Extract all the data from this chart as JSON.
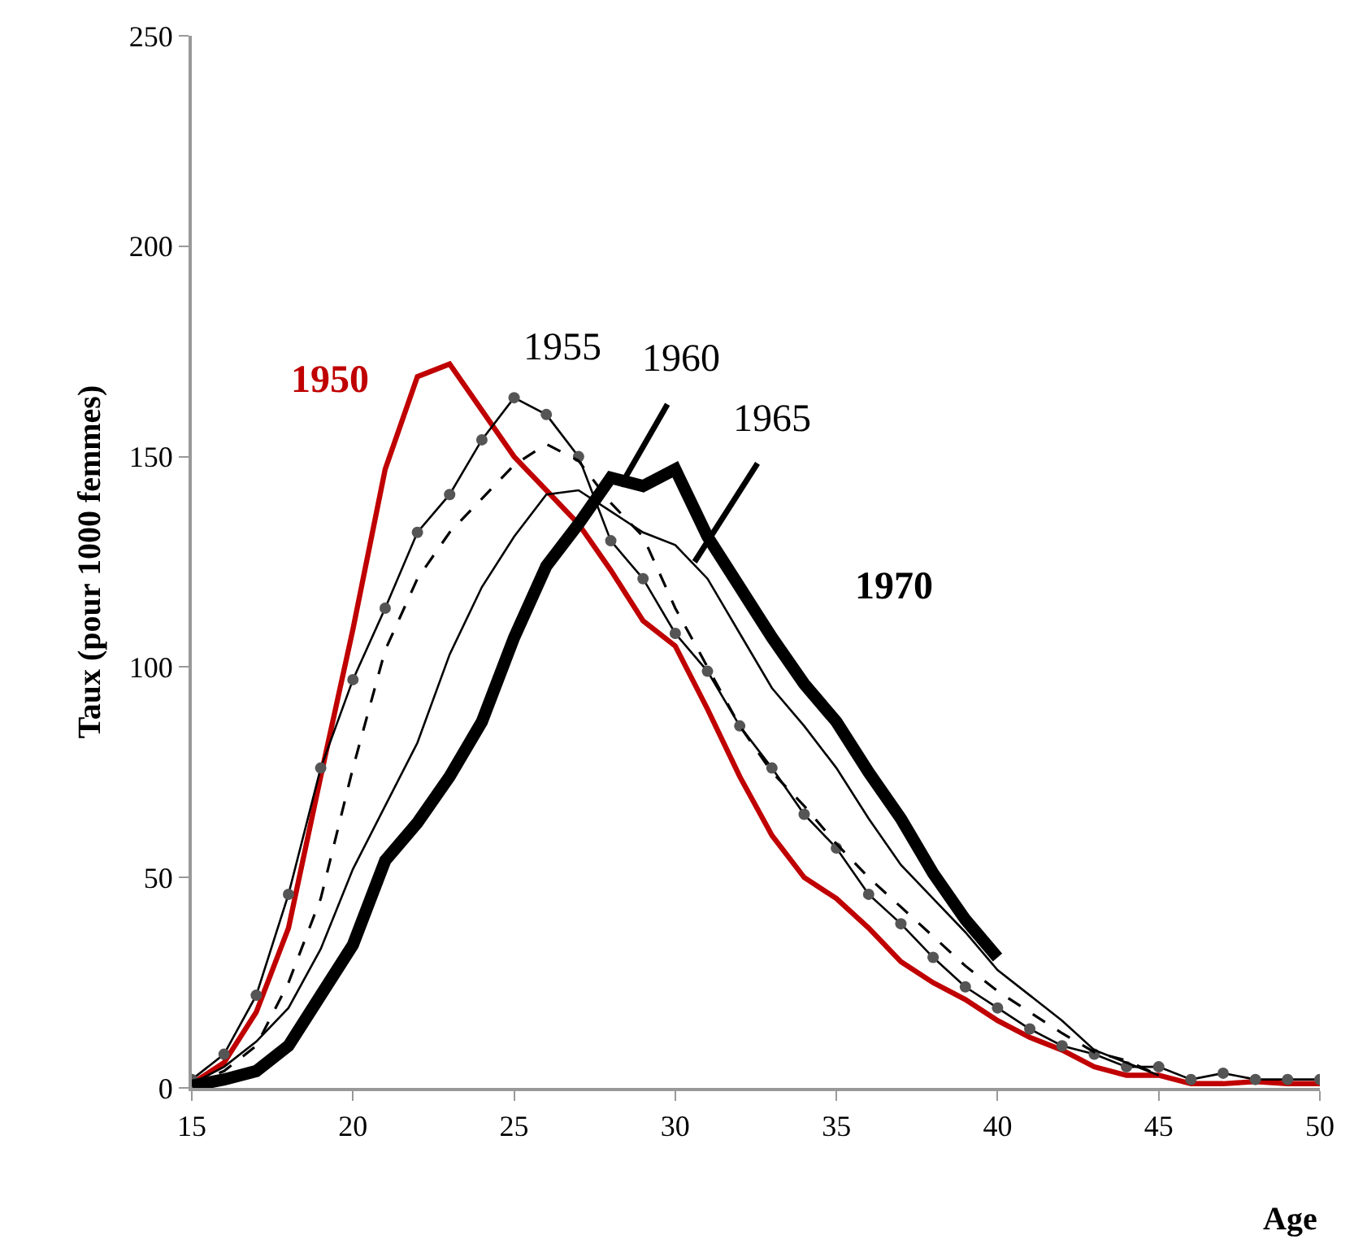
{
  "chart_data": {
    "type": "line",
    "xlabel": "Age",
    "ylabel": "Taux (pour 1000 femmes)",
    "xlim": [
      15,
      50
    ],
    "xticks": [
      15,
      20,
      25,
      30,
      35,
      40,
      45,
      50
    ],
    "ylim": [
      0,
      250
    ],
    "yticks": [
      0,
      50,
      100,
      150,
      200,
      250
    ],
    "legend": false,
    "series": [
      {
        "name": "1950",
        "color": "#c00000",
        "line_style": "solid",
        "marker": "none",
        "x": [
          15,
          16,
          17,
          18,
          19,
          20,
          21,
          22,
          23,
          24,
          25,
          26,
          27,
          28,
          29,
          30,
          31,
          32,
          33,
          34,
          35,
          36,
          37,
          38,
          39,
          40,
          41,
          42,
          43,
          44,
          45,
          46,
          47,
          48,
          49,
          50
        ],
        "values": [
          1,
          6,
          18,
          38,
          74,
          109,
          147,
          169,
          172,
          161,
          150,
          142,
          134,
          123,
          111,
          105,
          90,
          74,
          60,
          50,
          45,
          38,
          30,
          25,
          21,
          16,
          12,
          9,
          5,
          3,
          3,
          1,
          1,
          1.5,
          1,
          1
        ]
      },
      {
        "name": "1955",
        "color": "#000000",
        "line_style": "solid",
        "marker": "circle",
        "x": [
          15,
          16,
          17,
          18,
          19,
          20,
          21,
          22,
          23,
          24,
          25,
          26,
          27,
          28,
          29,
          30,
          31,
          32,
          33,
          34,
          35,
          36,
          37,
          38,
          39,
          40,
          41,
          42,
          43,
          44,
          45,
          46,
          47,
          48,
          49,
          50
        ],
        "values": [
          2,
          8,
          22,
          46,
          76,
          97,
          114,
          132,
          141,
          154,
          164,
          160,
          150,
          130,
          121,
          108,
          99,
          86,
          76,
          65,
          57,
          46,
          39,
          31,
          24,
          19,
          14,
          10,
          8,
          5,
          5,
          2,
          3.5,
          2,
          2,
          2
        ]
      },
      {
        "name": "1960",
        "color": "#000000",
        "line_style": "dashed",
        "marker": "none",
        "x": [
          15,
          16,
          17,
          18,
          19,
          20,
          21,
          22,
          23,
          24,
          25,
          26,
          27,
          28,
          29,
          30,
          31,
          32,
          33,
          34,
          35,
          36,
          37,
          38,
          39,
          40,
          41,
          42,
          43,
          44,
          45
        ],
        "values": [
          1,
          4,
          10,
          25,
          45,
          76,
          104,
          121,
          132,
          140,
          148,
          153,
          149,
          139,
          131,
          114,
          100,
          86,
          75,
          67,
          58,
          50,
          43,
          36,
          29,
          23,
          18,
          13,
          8.5,
          6.5,
          3
        ]
      },
      {
        "name": "1965",
        "color": "#000000",
        "line_style": "solid",
        "marker": "none",
        "x": [
          15,
          16,
          17,
          18,
          19,
          20,
          21,
          22,
          23,
          24,
          25,
          26,
          27,
          28,
          29,
          30,
          31,
          32,
          33,
          34,
          35,
          36,
          37,
          38,
          39,
          40,
          41,
          42,
          43,
          44,
          45
        ],
        "values": [
          1,
          5,
          11,
          19,
          33,
          52,
          67,
          82,
          103,
          119,
          131,
          141,
          142,
          137,
          132,
          129,
          121,
          108,
          95,
          86,
          76,
          64,
          53,
          45,
          37,
          28,
          22,
          16,
          9,
          6,
          3
        ]
      },
      {
        "name": "1970",
        "color": "#000000",
        "line_style": "solid",
        "marker": "none",
        "x": [
          15,
          16,
          17,
          18,
          19,
          20,
          21,
          22,
          23,
          24,
          25,
          26,
          27,
          28,
          29,
          30,
          31,
          32,
          33,
          34,
          35,
          36,
          37,
          38,
          39,
          40
        ],
        "values": [
          0.5,
          2,
          4,
          10,
          22,
          34,
          54,
          63,
          74,
          87,
          107,
          124,
          134,
          145,
          143,
          147,
          131,
          119,
          107,
          96,
          87,
          75,
          64,
          51,
          40,
          31
        ]
      }
    ]
  }
}
